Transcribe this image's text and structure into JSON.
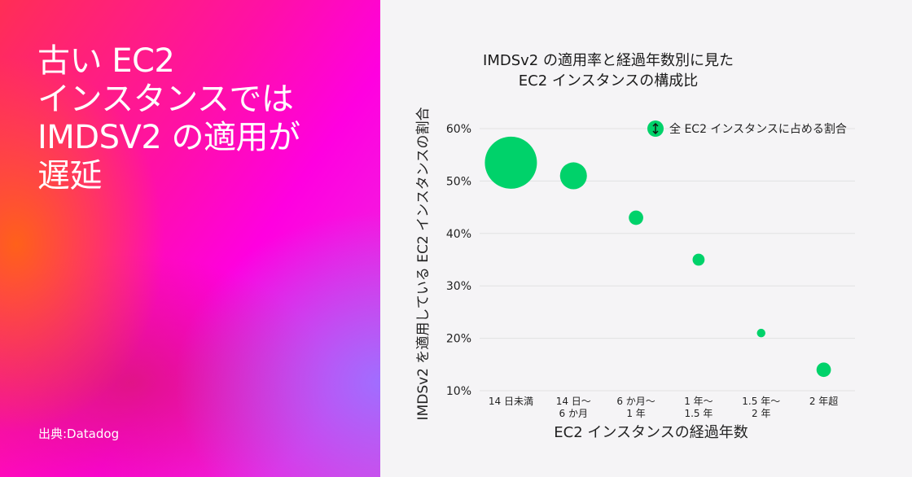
{
  "slide": {
    "headline": "古い EC2\nインスタンスでは\nIMDSV2 の適用が\n遅延",
    "source": "出典:Datadog"
  },
  "chart_data": {
    "type": "scatter",
    "title": "IMDSv2 の適用率と経過年数別に見た\nEC2 インスタンスの構成比",
    "xlabel": "EC2 インスタンスの経過年数",
    "ylabel": "IMDSv2 を適用している EC2 インスタンスの割合",
    "categories": [
      [
        "14 日未満"
      ],
      [
        "14 日〜",
        "6 か月"
      ],
      [
        "6 か月〜",
        "1 年"
      ],
      [
        "1 年〜",
        "1.5 年"
      ],
      [
        "1.5 年〜",
        "2 年"
      ],
      [
        "2 年超"
      ]
    ],
    "values": [
      53.5,
      51,
      43,
      35,
      21,
      14
    ],
    "bubble_share": [
      30,
      8,
      2.3,
      1.6,
      0.8,
      2.3
    ],
    "ylim": [
      10,
      60
    ],
    "yticks": [
      "10%",
      "20%",
      "30%",
      "40%",
      "50%",
      "60%"
    ],
    "legend": {
      "label": "全 EC2 インスタンスに占める割合",
      "position": "top-right"
    },
    "grid": true,
    "colors": {
      "bubble": "#00d26a",
      "grid": "#e2e2e2",
      "text": "#222222"
    }
  }
}
